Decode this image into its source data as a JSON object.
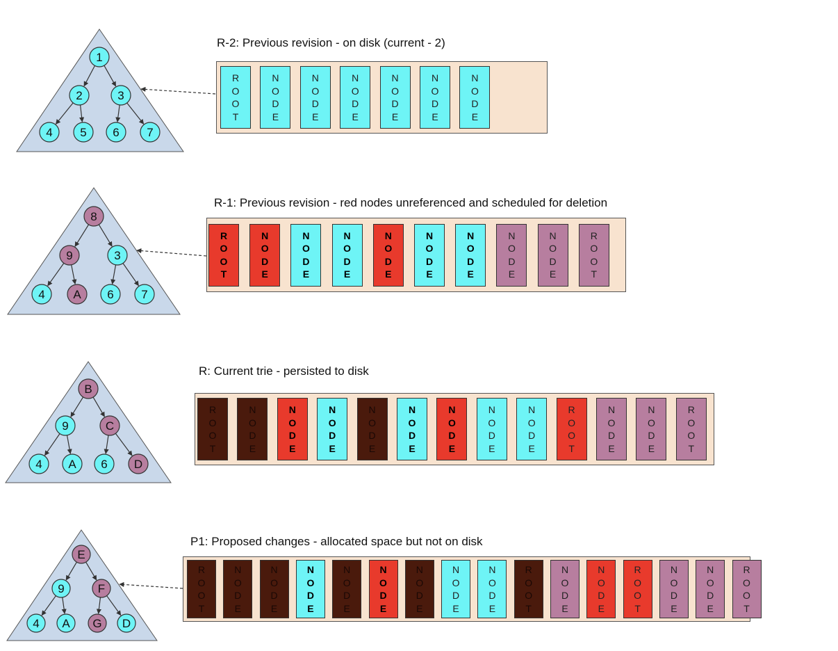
{
  "colors": {
    "cyan": "#6ef4f6",
    "red": "#e83a2c",
    "mauve": "#b77e9f",
    "brown": "#4a1a0c",
    "panel": "#f8e3cf",
    "triangle": "#c9d8ea"
  },
  "revisions": [
    {
      "caption": "R-2: Previous revision - on disk (current - 2)",
      "tree": {
        "root": "1",
        "mid": [
          "2",
          "3"
        ],
        "leaves": [
          "4",
          "5",
          "6",
          "7"
        ],
        "colors": {
          "root": "cyan",
          "mid": [
            "cyan",
            "cyan"
          ],
          "leaves": [
            "cyan",
            "cyan",
            "cyan",
            "cyan"
          ]
        }
      },
      "pointer": true,
      "blocks": [
        {
          "label": "ROOT",
          "color": "cyan",
          "bold": false
        },
        {
          "label": "NODE",
          "color": "cyan",
          "bold": false
        },
        {
          "label": "NODE",
          "color": "cyan",
          "bold": false
        },
        {
          "label": "NODE",
          "color": "cyan",
          "bold": false
        },
        {
          "label": "NODE",
          "color": "cyan",
          "bold": false
        },
        {
          "label": "NODE",
          "color": "cyan",
          "bold": false
        },
        {
          "label": "NODE",
          "color": "cyan",
          "bold": false
        }
      ]
    },
    {
      "caption": "R-1: Previous revision - red nodes unreferenced and scheduled for deletion",
      "tree": {
        "root": "8",
        "mid": [
          "9",
          "3"
        ],
        "leaves": [
          "4",
          "A",
          "6",
          "7"
        ],
        "colors": {
          "root": "mauve",
          "mid": [
            "mauve",
            "cyan"
          ],
          "leaves": [
            "cyan",
            "mauve",
            "cyan",
            "cyan"
          ]
        }
      },
      "pointer": true,
      "blocks": [
        {
          "label": "ROOT",
          "color": "red",
          "bold": true
        },
        {
          "label": "NODE",
          "color": "red",
          "bold": true
        },
        {
          "label": "NODE",
          "color": "cyan",
          "bold": true
        },
        {
          "label": "NODE",
          "color": "cyan",
          "bold": true
        },
        {
          "label": "NODE",
          "color": "red",
          "bold": true
        },
        {
          "label": "NODE",
          "color": "cyan",
          "bold": true
        },
        {
          "label": "NODE",
          "color": "cyan",
          "bold": true
        },
        {
          "label": "NODE",
          "color": "mauve",
          "bold": false
        },
        {
          "label": "NODE",
          "color": "mauve",
          "bold": false
        },
        {
          "label": "ROOT",
          "color": "mauve",
          "bold": false
        }
      ]
    },
    {
      "caption": "R: Current trie - persisted to disk",
      "tree": {
        "root": "B",
        "mid": [
          "9",
          "C"
        ],
        "leaves": [
          "4",
          "A",
          "6",
          "D"
        ],
        "colors": {
          "root": "mauve",
          "mid": [
            "cyan",
            "mauve"
          ],
          "leaves": [
            "cyan",
            "cyan",
            "cyan",
            "mauve"
          ]
        }
      },
      "pointer": false,
      "blocks": [
        {
          "label": "ROOT",
          "color": "brown",
          "bold": false
        },
        {
          "label": "NODE",
          "color": "brown",
          "bold": false
        },
        {
          "label": "NODE",
          "color": "red",
          "bold": true
        },
        {
          "label": "NODE",
          "color": "cyan",
          "bold": true
        },
        {
          "label": "NODE",
          "color": "brown",
          "bold": false
        },
        {
          "label": "NODE",
          "color": "cyan",
          "bold": true
        },
        {
          "label": "NODE",
          "color": "red",
          "bold": true
        },
        {
          "label": "NODE",
          "color": "cyan",
          "bold": false
        },
        {
          "label": "NODE",
          "color": "cyan",
          "bold": false
        },
        {
          "label": "ROOT",
          "color": "red",
          "bold": false
        },
        {
          "label": "NODE",
          "color": "mauve",
          "bold": false
        },
        {
          "label": "NODE",
          "color": "mauve",
          "bold": false
        },
        {
          "label": "ROOT",
          "color": "mauve",
          "bold": false
        }
      ]
    },
    {
      "caption": "P1: Proposed changes - allocated space but not on disk",
      "tree": {
        "root": "E",
        "mid": [
          "9",
          "F"
        ],
        "leaves": [
          "4",
          "A",
          "G",
          "D"
        ],
        "colors": {
          "root": "mauve",
          "mid": [
            "cyan",
            "mauve"
          ],
          "leaves": [
            "cyan",
            "cyan",
            "mauve",
            "cyan"
          ]
        }
      },
      "pointer": true,
      "blocks": [
        {
          "label": "ROOT",
          "color": "brown",
          "bold": false
        },
        {
          "label": "NODE",
          "color": "brown",
          "bold": false
        },
        {
          "label": "NODE",
          "color": "brown",
          "bold": false
        },
        {
          "label": "NODE",
          "color": "cyan",
          "bold": true
        },
        {
          "label": "NODE",
          "color": "brown",
          "bold": false
        },
        {
          "label": "NODE",
          "color": "red",
          "bold": true
        },
        {
          "label": "NODE",
          "color": "brown",
          "bold": false
        },
        {
          "label": "NODE",
          "color": "cyan",
          "bold": false
        },
        {
          "label": "NODE",
          "color": "cyan",
          "bold": false
        },
        {
          "label": "ROOT",
          "color": "brown",
          "bold": false
        },
        {
          "label": "NODE",
          "color": "mauve",
          "bold": false
        },
        {
          "label": "NODE",
          "color": "red",
          "bold": false
        },
        {
          "label": "ROOT",
          "color": "red",
          "bold": false
        },
        {
          "label": "NODE",
          "color": "mauve",
          "bold": false
        },
        {
          "label": "NODE",
          "color": "mauve",
          "bold": false
        },
        {
          "label": "ROOT",
          "color": "mauve",
          "bold": false
        }
      ]
    }
  ]
}
